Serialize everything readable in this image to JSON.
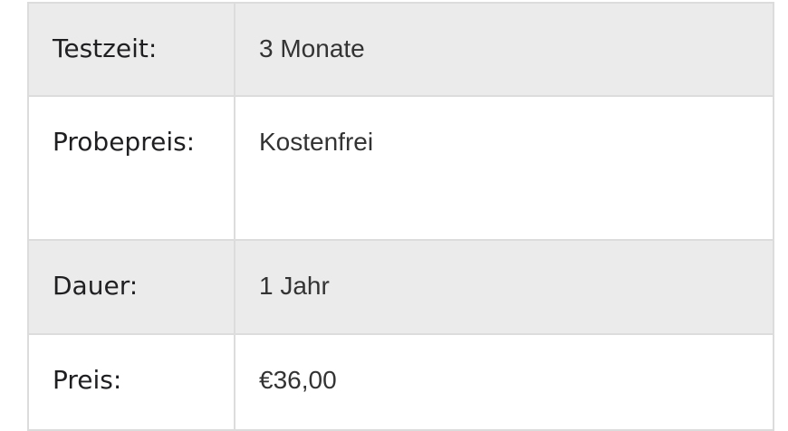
{
  "rows": [
    {
      "label": "Testzeit:",
      "value": "3 Monate"
    },
    {
      "label": "Probepreis:",
      "value": "Kostenfrei"
    },
    {
      "label": "Dauer:",
      "value": "1 Jahr"
    },
    {
      "label": "Preis:",
      "value": "€36,00"
    }
  ]
}
